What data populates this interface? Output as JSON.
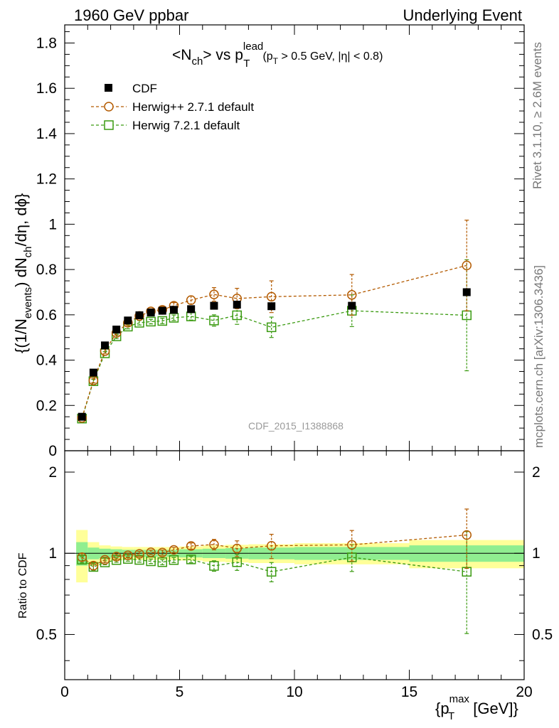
{
  "header": {
    "left": "1960 GeV ppbar",
    "right": "Underlying Event"
  },
  "side_text": {
    "rivet": "Rivet 3.1.10, ≥ 2.6M events",
    "mcplots": "mcplots.cern.ch [arXiv:1306.3436]"
  },
  "watermark": "CDF_2015_I1388868",
  "plot_title": {
    "t1": "<N",
    "t1_sub": "ch",
    "t2": "> vs p",
    "t2_sup": "lead",
    "t2_sub": "T",
    "t3": "(p",
    "t3_sub": "T",
    "t4": " > 0.5 GeV, |η| < 0.8)"
  },
  "ylabel_main": {
    "a": "{(1/N",
    "a_sub": "events",
    "b": ") dN",
    "b_sub": "ch",
    "c": "/dη, dϕ}"
  },
  "ylabel_ratio": "Ratio to CDF",
  "xlabel": {
    "a": "{p",
    "a_sup": "max",
    "a_sub": "T",
    "b": " [GeV]}"
  },
  "chart_data": {
    "type": "scatter",
    "x": [
      0.75,
      1.25,
      1.75,
      2.25,
      2.75,
      3.25,
      3.75,
      4.25,
      4.75,
      5.5,
      6.5,
      7.5,
      9.0,
      12.5,
      17.5
    ],
    "xlim": [
      0,
      20
    ],
    "x_ticks": [
      "0",
      "5",
      "10",
      "15",
      "20"
    ],
    "main": {
      "ylim": [
        0,
        1.88
      ],
      "y_ticks": [
        "0",
        "0.2",
        "0.4",
        "0.6",
        "0.8",
        "1",
        "1.2",
        "1.4",
        "1.6",
        "1.8"
      ],
      "series": [
        {
          "name": "CDF",
          "color": "#000000",
          "marker": "filled-square",
          "values": [
            0.15,
            0.345,
            0.465,
            0.535,
            0.575,
            0.598,
            0.61,
            0.618,
            0.622,
            0.625,
            0.64,
            0.645,
            0.638,
            0.64,
            0.7
          ],
          "err": [
            0.005,
            0.006,
            0.006,
            0.006,
            0.006,
            0.006,
            0.006,
            0.006,
            0.006,
            0.008,
            0.01,
            0.012,
            0.014,
            0.016,
            0.02
          ]
        },
        {
          "name": "Herwig++ 2.7.1 default",
          "color": "#b35a00",
          "marker": "open-circle",
          "values": [
            0.145,
            0.31,
            0.44,
            0.52,
            0.565,
            0.595,
            0.615,
            0.622,
            0.64,
            0.665,
            0.69,
            0.672,
            0.68,
            0.688,
            0.818
          ],
          "err": [
            0.005,
            0.01,
            0.01,
            0.01,
            0.012,
            0.012,
            0.012,
            0.014,
            0.014,
            0.018,
            0.03,
            0.045,
            0.07,
            0.09,
            0.2
          ]
        },
        {
          "name": "Herwig 7.2.1 default",
          "color": "#3a9a10",
          "marker": "open-square",
          "values": [
            0.142,
            0.307,
            0.43,
            0.505,
            0.548,
            0.565,
            0.57,
            0.573,
            0.587,
            0.593,
            0.575,
            0.598,
            0.545,
            0.618,
            0.598
          ],
          "err": [
            0.004,
            0.008,
            0.008,
            0.01,
            0.01,
            0.01,
            0.01,
            0.012,
            0.012,
            0.016,
            0.025,
            0.04,
            0.045,
            0.07,
            0.245
          ]
        }
      ]
    },
    "ratio": {
      "ylim": [
        0.34,
        2.4
      ],
      "y_ticks": [
        "0.5",
        "1",
        "2"
      ],
      "bands": {
        "edges": [
          0.5,
          1.0,
          1.5,
          2.0,
          2.5,
          3.0,
          3.5,
          4.0,
          4.5,
          5.0,
          6.0,
          7.0,
          8.0,
          10.0,
          15.0,
          20.0
        ],
        "inner": [
          0.1,
          0.05,
          0.04,
          0.035,
          0.03,
          0.03,
          0.03,
          0.03,
          0.03,
          0.035,
          0.04,
          0.045,
          0.05,
          0.055,
          0.07
        ],
        "outer": [
          0.22,
          0.1,
          0.07,
          0.06,
          0.055,
          0.055,
          0.055,
          0.055,
          0.055,
          0.06,
          0.07,
          0.075,
          0.08,
          0.09,
          0.12
        ],
        "inner_color": "#90ee90",
        "outer_color": "#ffff99"
      },
      "series": [
        {
          "name": "Herwig++ 2.7.1 default",
          "values": [
            0.967,
            0.9,
            0.946,
            0.972,
            0.983,
            0.995,
            1.008,
            1.006,
            1.029,
            1.064,
            1.078,
            1.042,
            1.066,
            1.075,
            1.169
          ],
          "err": [
            0.03,
            0.03,
            0.02,
            0.02,
            0.02,
            0.02,
            0.02,
            0.022,
            0.022,
            0.028,
            0.048,
            0.07,
            0.11,
            0.14,
            0.29
          ]
        },
        {
          "name": "Herwig 7.2.1 default",
          "values": [
            0.947,
            0.89,
            0.925,
            0.944,
            0.953,
            0.945,
            0.934,
            0.927,
            0.944,
            0.949,
            0.898,
            0.927,
            0.854,
            0.966,
            0.854
          ],
          "err": [
            0.025,
            0.025,
            0.018,
            0.018,
            0.018,
            0.018,
            0.018,
            0.02,
            0.02,
            0.026,
            0.04,
            0.063,
            0.07,
            0.11,
            0.35
          ]
        }
      ]
    }
  }
}
